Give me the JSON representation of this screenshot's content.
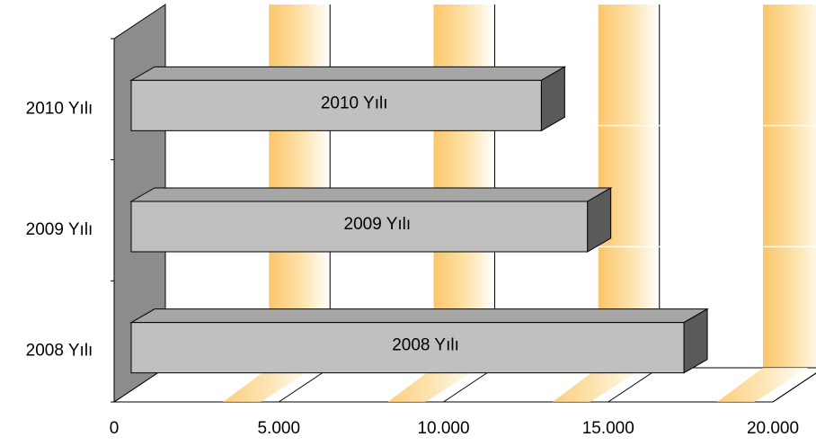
{
  "chart_data": {
    "type": "bar",
    "orientation": "horizontal",
    "three_d": true,
    "categories": [
      "2010 Yılı",
      "2009 Yılı",
      "2008 Yılı"
    ],
    "values": [
      12970,
      14370,
      17300
    ],
    "data_labels": [
      "2010 Yılı",
      "2009 Yılı",
      "2008 Yılı"
    ],
    "xlim": [
      0,
      20000
    ],
    "x_ticks": [
      "0",
      "5.000",
      "10.000",
      "15.000",
      "20.000"
    ],
    "x_tick_values": [
      0,
      5000,
      10000,
      15000,
      20000
    ],
    "grid": true,
    "legend": "none",
    "colors": {
      "bar_front": "#c0c0c0",
      "bar_top": "#a6a6a6",
      "bar_side": "#5a5a5a",
      "back_wall_stripe": "#fbc66a",
      "side_wall": "#8c8c8c"
    }
  }
}
